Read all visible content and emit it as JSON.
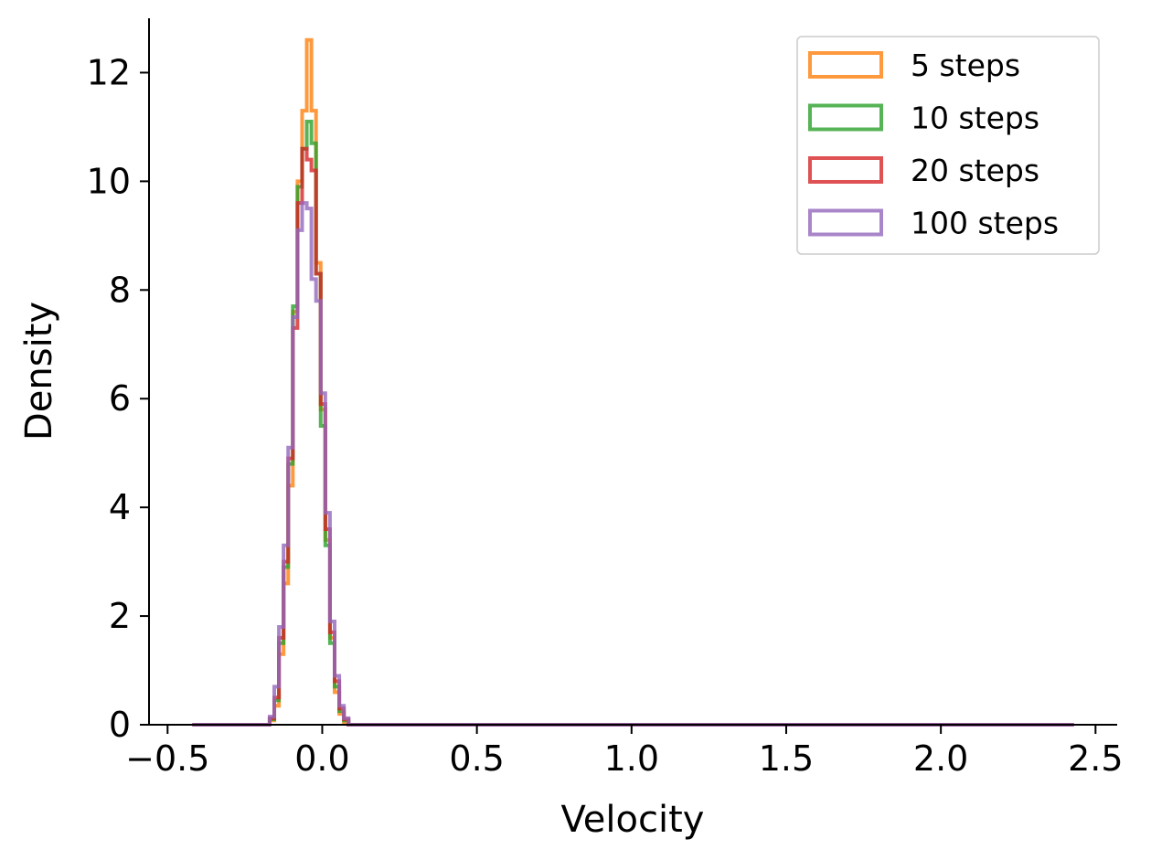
{
  "chart_data": {
    "type": "histogram",
    "title": "",
    "xlabel": "Velocity",
    "ylabel": "Density",
    "xlim": [
      -0.56,
      2.57
    ],
    "ylim": [
      0,
      13
    ],
    "xticks": [
      -0.5,
      0.0,
      0.5,
      1.0,
      1.5,
      2.0,
      2.5
    ],
    "xtick_labels": [
      "−0.5",
      "0.0",
      "0.5",
      "1.0",
      "1.5",
      "2.0",
      "2.5"
    ],
    "yticks": [
      0,
      2,
      4,
      6,
      8,
      10,
      12
    ],
    "ytick_labels": [
      "0",
      "2",
      "4",
      "6",
      "8",
      "10",
      "12"
    ],
    "grid": false,
    "legend_position": "top-right",
    "histtype": "step",
    "range": [
      -0.42,
      2.43
    ],
    "series": [
      {
        "name": "5 steps",
        "color": "#ff7f0e",
        "bins": [
          [
            -0.18,
            0.0
          ],
          [
            -0.17,
            0.08
          ],
          [
            -0.155,
            0.35
          ],
          [
            -0.14,
            1.3
          ],
          [
            -0.125,
            2.6
          ],
          [
            -0.11,
            4.4
          ],
          [
            -0.095,
            7.6
          ],
          [
            -0.08,
            10.0
          ],
          [
            -0.065,
            11.3
          ],
          [
            -0.05,
            12.6
          ],
          [
            -0.035,
            11.3
          ],
          [
            -0.02,
            8.5
          ],
          [
            -0.005,
            5.8
          ],
          [
            0.01,
            3.4
          ],
          [
            0.025,
            1.6
          ],
          [
            0.04,
            0.6
          ],
          [
            0.055,
            0.2
          ],
          [
            0.07,
            0.05
          ],
          [
            0.085,
            0.0
          ]
        ]
      },
      {
        "name": "10 steps",
        "color": "#2ca02c",
        "bins": [
          [
            -0.18,
            0.0
          ],
          [
            -0.17,
            0.1
          ],
          [
            -0.155,
            0.45
          ],
          [
            -0.14,
            1.5
          ],
          [
            -0.125,
            2.9
          ],
          [
            -0.11,
            4.8
          ],
          [
            -0.095,
            7.7
          ],
          [
            -0.08,
            9.9
          ],
          [
            -0.065,
            10.6
          ],
          [
            -0.05,
            11.1
          ],
          [
            -0.035,
            10.7
          ],
          [
            -0.02,
            8.3
          ],
          [
            -0.005,
            5.5
          ],
          [
            0.01,
            3.3
          ],
          [
            0.025,
            1.5
          ],
          [
            0.04,
            0.7
          ],
          [
            0.055,
            0.25
          ],
          [
            0.07,
            0.08
          ],
          [
            0.085,
            0.0
          ]
        ]
      },
      {
        "name": "20 steps",
        "color": "#d62728",
        "bins": [
          [
            -0.18,
            0.0
          ],
          [
            -0.17,
            0.12
          ],
          [
            -0.155,
            0.5
          ],
          [
            -0.14,
            1.6
          ],
          [
            -0.125,
            3.0
          ],
          [
            -0.11,
            4.9
          ],
          [
            -0.095,
            7.3
          ],
          [
            -0.08,
            9.6
          ],
          [
            -0.065,
            10.6
          ],
          [
            -0.05,
            10.4
          ],
          [
            -0.035,
            10.2
          ],
          [
            -0.02,
            8.3
          ],
          [
            -0.005,
            5.9
          ],
          [
            0.01,
            3.6
          ],
          [
            0.025,
            1.7
          ],
          [
            0.04,
            0.8
          ],
          [
            0.055,
            0.3
          ],
          [
            0.07,
            0.1
          ],
          [
            0.085,
            0.0
          ]
        ]
      },
      {
        "name": "100 steps",
        "color": "#9467bd",
        "bins": [
          [
            -0.18,
            0.0
          ],
          [
            -0.17,
            0.15
          ],
          [
            -0.155,
            0.7
          ],
          [
            -0.14,
            1.8
          ],
          [
            -0.125,
            3.3
          ],
          [
            -0.11,
            5.1
          ],
          [
            -0.095,
            7.5
          ],
          [
            -0.08,
            9.1
          ],
          [
            -0.065,
            9.6
          ],
          [
            -0.05,
            9.5
          ],
          [
            -0.035,
            8.2
          ],
          [
            -0.02,
            7.8
          ],
          [
            -0.005,
            6.1
          ],
          [
            0.01,
            3.9
          ],
          [
            0.025,
            1.9
          ],
          [
            0.04,
            0.9
          ],
          [
            0.055,
            0.35
          ],
          [
            0.07,
            0.12
          ],
          [
            0.085,
            0.0
          ]
        ]
      }
    ]
  }
}
